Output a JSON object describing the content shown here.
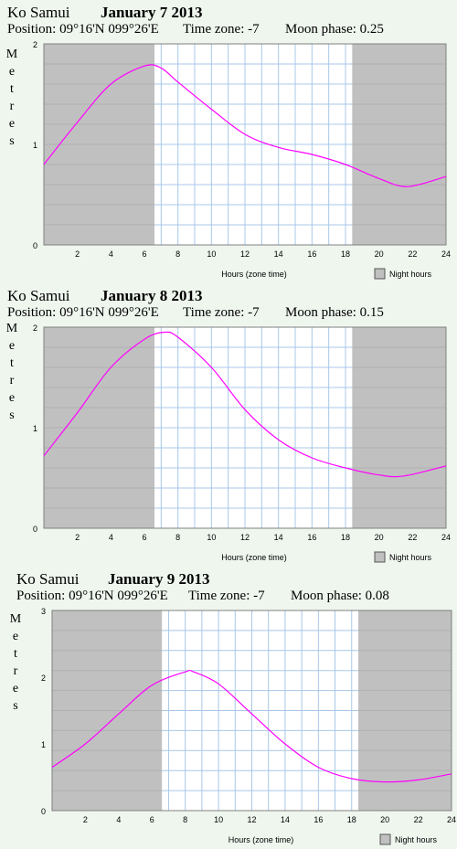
{
  "chart_data": [
    {
      "type": "line",
      "location": "Ko Samui",
      "date": "January 7 2013",
      "position_label": "Position: 09°16'N 099°26'E",
      "timezone_label": "Time zone: -7",
      "moon_label": "Moon phase: 0.25",
      "ylabel": "Metres",
      "xlabel": "Hours (zone time)",
      "legend": "Night hours",
      "xlim": [
        0,
        24
      ],
      "ylim": [
        0,
        2
      ],
      "x_ticks": [
        "2",
        "4",
        "6",
        "8",
        "10",
        "12",
        "14",
        "16",
        "18",
        "20",
        "22",
        "24"
      ],
      "y_ticks": [
        "0",
        "1",
        "2"
      ],
      "night": [
        [
          0,
          6.6
        ],
        [
          18.4,
          24
        ]
      ],
      "x": [
        0,
        2,
        4,
        6,
        7,
        8,
        10,
        12,
        14,
        16,
        18,
        20,
        21.7,
        24
      ],
      "y": [
        0.8,
        1.22,
        1.6,
        1.78,
        1.76,
        1.62,
        1.35,
        1.1,
        0.97,
        0.9,
        0.8,
        0.66,
        0.58,
        0.68
      ],
      "series_color": "#ff00ff",
      "night_color": "#c0c0c0",
      "grid_color": "#a8c8e8"
    },
    {
      "type": "line",
      "location": "Ko Samui",
      "date": "January 8 2013",
      "position_label": "Position: 09°16'N 099°26'E",
      "timezone_label": "Time zone: -7",
      "moon_label": "Moon phase: 0.15",
      "ylabel": "Metres",
      "xlabel": "Hours (zone time)",
      "legend": "Night hours",
      "xlim": [
        0,
        24
      ],
      "ylim": [
        0,
        2
      ],
      "x_ticks": [
        "2",
        "4",
        "6",
        "8",
        "10",
        "12",
        "14",
        "16",
        "18",
        "20",
        "22",
        "24"
      ],
      "y_ticks": [
        "0",
        "1",
        "2"
      ],
      "night": [
        [
          0,
          6.6
        ],
        [
          18.4,
          24
        ]
      ],
      "x": [
        0,
        2,
        4,
        6,
        7.2,
        8,
        10,
        12,
        14,
        16,
        18,
        20,
        21.5,
        24
      ],
      "y": [
        0.72,
        1.15,
        1.6,
        1.88,
        1.95,
        1.9,
        1.6,
        1.18,
        0.88,
        0.7,
        0.6,
        0.53,
        0.52,
        0.62
      ],
      "series_color": "#ff00ff",
      "night_color": "#c0c0c0",
      "grid_color": "#a8c8e8"
    },
    {
      "type": "line",
      "location": "Ko Samui",
      "date": "January 9 2013",
      "position_label": "Position: 09°16'N 099°26'E",
      "timezone_label": "Time zone: -7",
      "moon_label": "Moon phase: 0.08",
      "ylabel": "Metres",
      "xlabel": "Hours (zone time)",
      "legend": "Night hours",
      "xlim": [
        0,
        24
      ],
      "ylim": [
        0,
        3
      ],
      "x_ticks": [
        "2",
        "4",
        "6",
        "8",
        "10",
        "12",
        "14",
        "16",
        "18",
        "20",
        "22",
        "24"
      ],
      "y_ticks": [
        "0",
        "1",
        "2",
        "3"
      ],
      "night": [
        [
          0,
          6.6
        ],
        [
          18.4,
          24
        ]
      ],
      "x": [
        0,
        2,
        4,
        6,
        8,
        8.5,
        10,
        12,
        14,
        16,
        18,
        20,
        22,
        24
      ],
      "y": [
        0.65,
        1.0,
        1.45,
        1.88,
        2.08,
        2.08,
        1.9,
        1.45,
        1.0,
        0.65,
        0.48,
        0.43,
        0.46,
        0.55
      ],
      "series_color": "#ff00ff",
      "night_color": "#c0c0c0",
      "grid_color": "#a8c8e8"
    }
  ]
}
